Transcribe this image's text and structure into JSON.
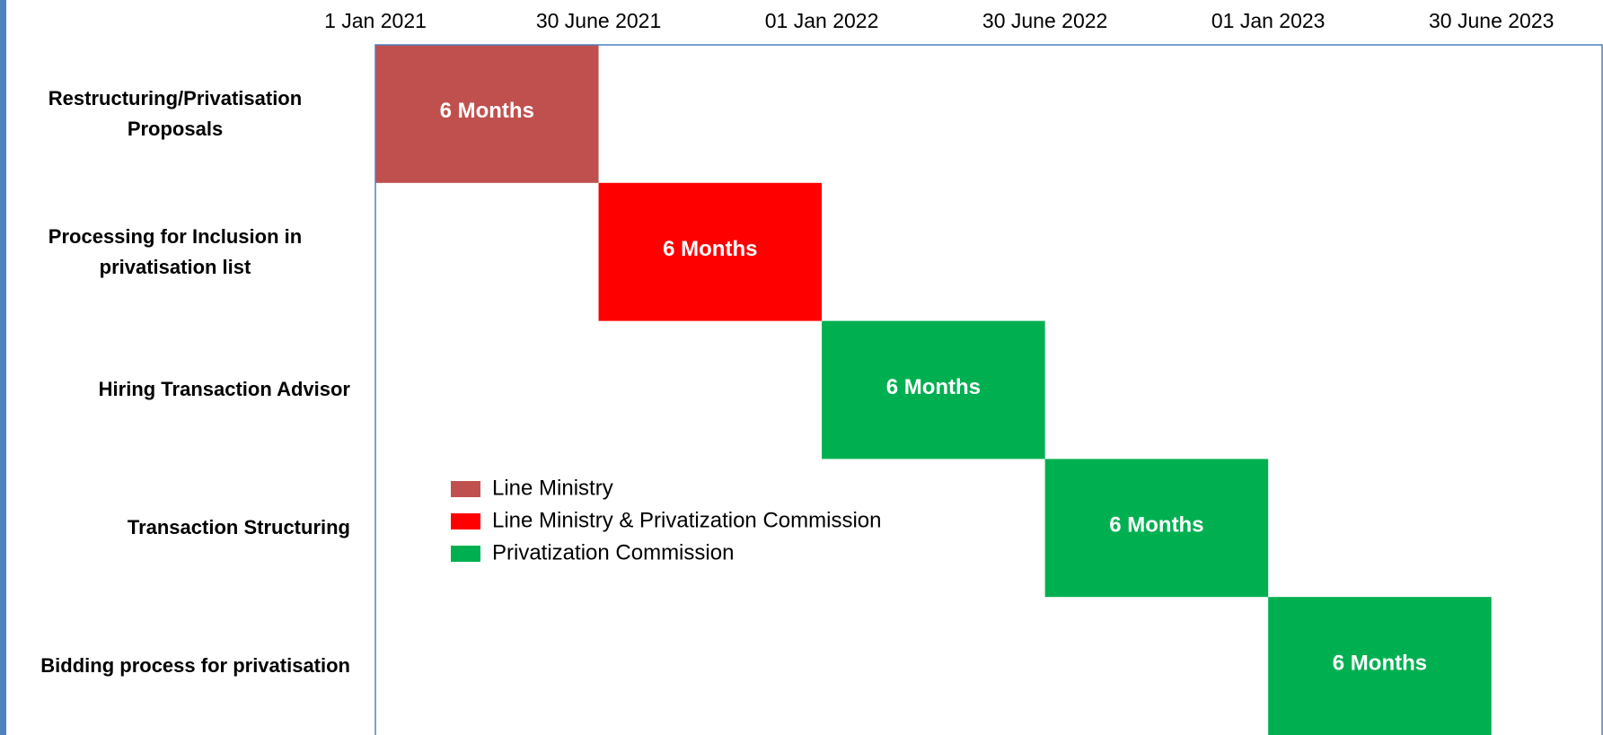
{
  "chart_data": {
    "type": "gantt",
    "categories": [
      "Restructuring/Privatisation Proposals",
      "Processing for Inclusion in privatisation list",
      "Hiring Transaction Advisor",
      "Transaction Structuring",
      "Bidding process for privatisation"
    ],
    "xlim": [
      0,
      33
    ],
    "xticks": [
      {
        "value": 0,
        "label": "1 Jan 2021"
      },
      {
        "value": 6,
        "label": "30 June 2021"
      },
      {
        "value": 12,
        "label": "01 Jan 2022"
      },
      {
        "value": 18,
        "label": "30 June 2022"
      },
      {
        "value": 24,
        "label": "01 Jan 2023"
      },
      {
        "value": 30,
        "label": "30 June 2023"
      }
    ],
    "series": [
      {
        "name": "Line Ministry",
        "color": "#c0504d",
        "start": [
          0,
          null,
          null,
          null,
          null
        ],
        "values": [
          6,
          null,
          null,
          null,
          null
        ],
        "value_labels": [
          "6 Months",
          null,
          null,
          null,
          null
        ]
      },
      {
        "name": "Line Ministry & Privatization Commission",
        "color": "#ff0000",
        "start": [
          null,
          6,
          null,
          null,
          null
        ],
        "values": [
          null,
          6,
          null,
          null,
          null
        ],
        "value_labels": [
          null,
          "6 Months",
          null,
          null,
          null
        ]
      },
      {
        "name": "Privatization Commission",
        "color": "#00b050",
        "start": [
          null,
          null,
          12,
          18,
          24
        ],
        "values": [
          null,
          null,
          6,
          6,
          6
        ],
        "value_labels": [
          null,
          null,
          "6 Months",
          "6 Months",
          "6 Months"
        ]
      }
    ]
  }
}
